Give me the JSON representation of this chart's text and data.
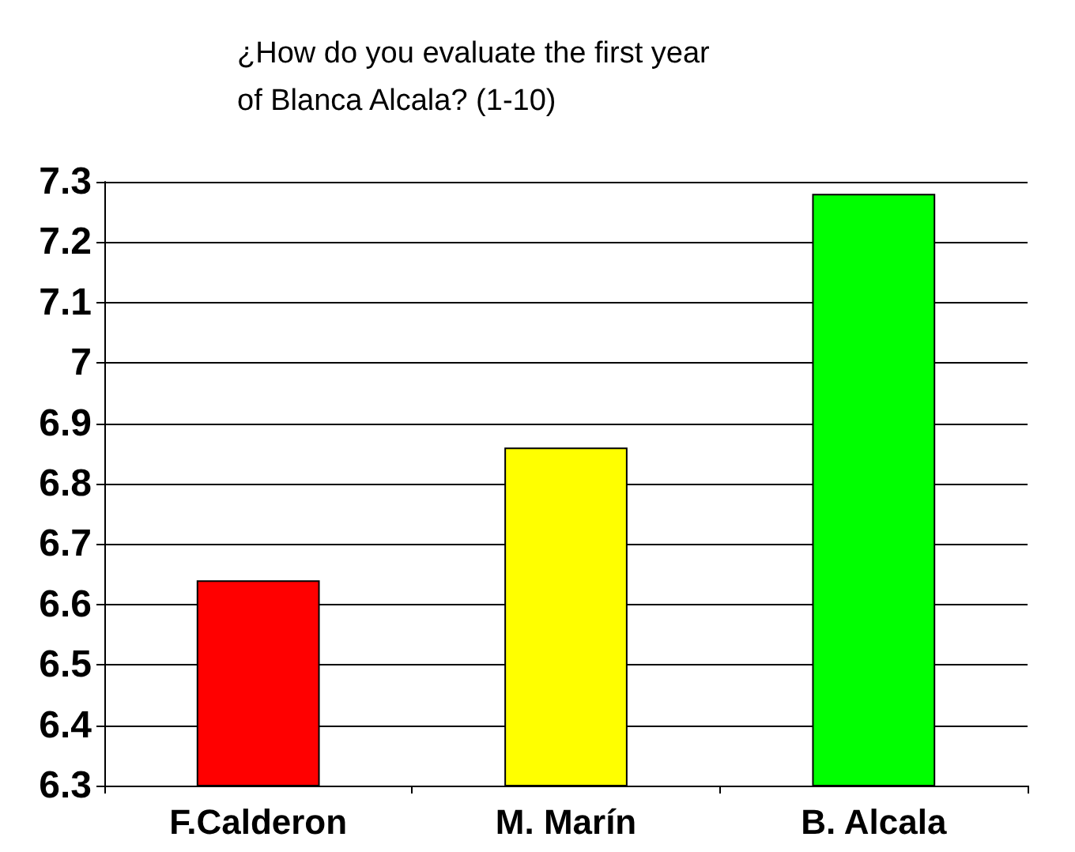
{
  "chart_data": {
    "type": "bar",
    "title": "¿How do you evaluate the first year\nof Blanca Alcala? (1-10)",
    "categories": [
      "F.Calderon",
      "M. Marín",
      "B. Alcala"
    ],
    "values": [
      6.64,
      6.86,
      7.28
    ],
    "colors": [
      "#ff0000",
      "#ffff00",
      "#00ff00"
    ],
    "ylim": [
      6.3,
      7.3
    ],
    "yticks": [
      6.3,
      6.4,
      6.5,
      6.6,
      6.7,
      6.8,
      6.9,
      7,
      7.1,
      7.2,
      7.3
    ],
    "grid": "y"
  }
}
